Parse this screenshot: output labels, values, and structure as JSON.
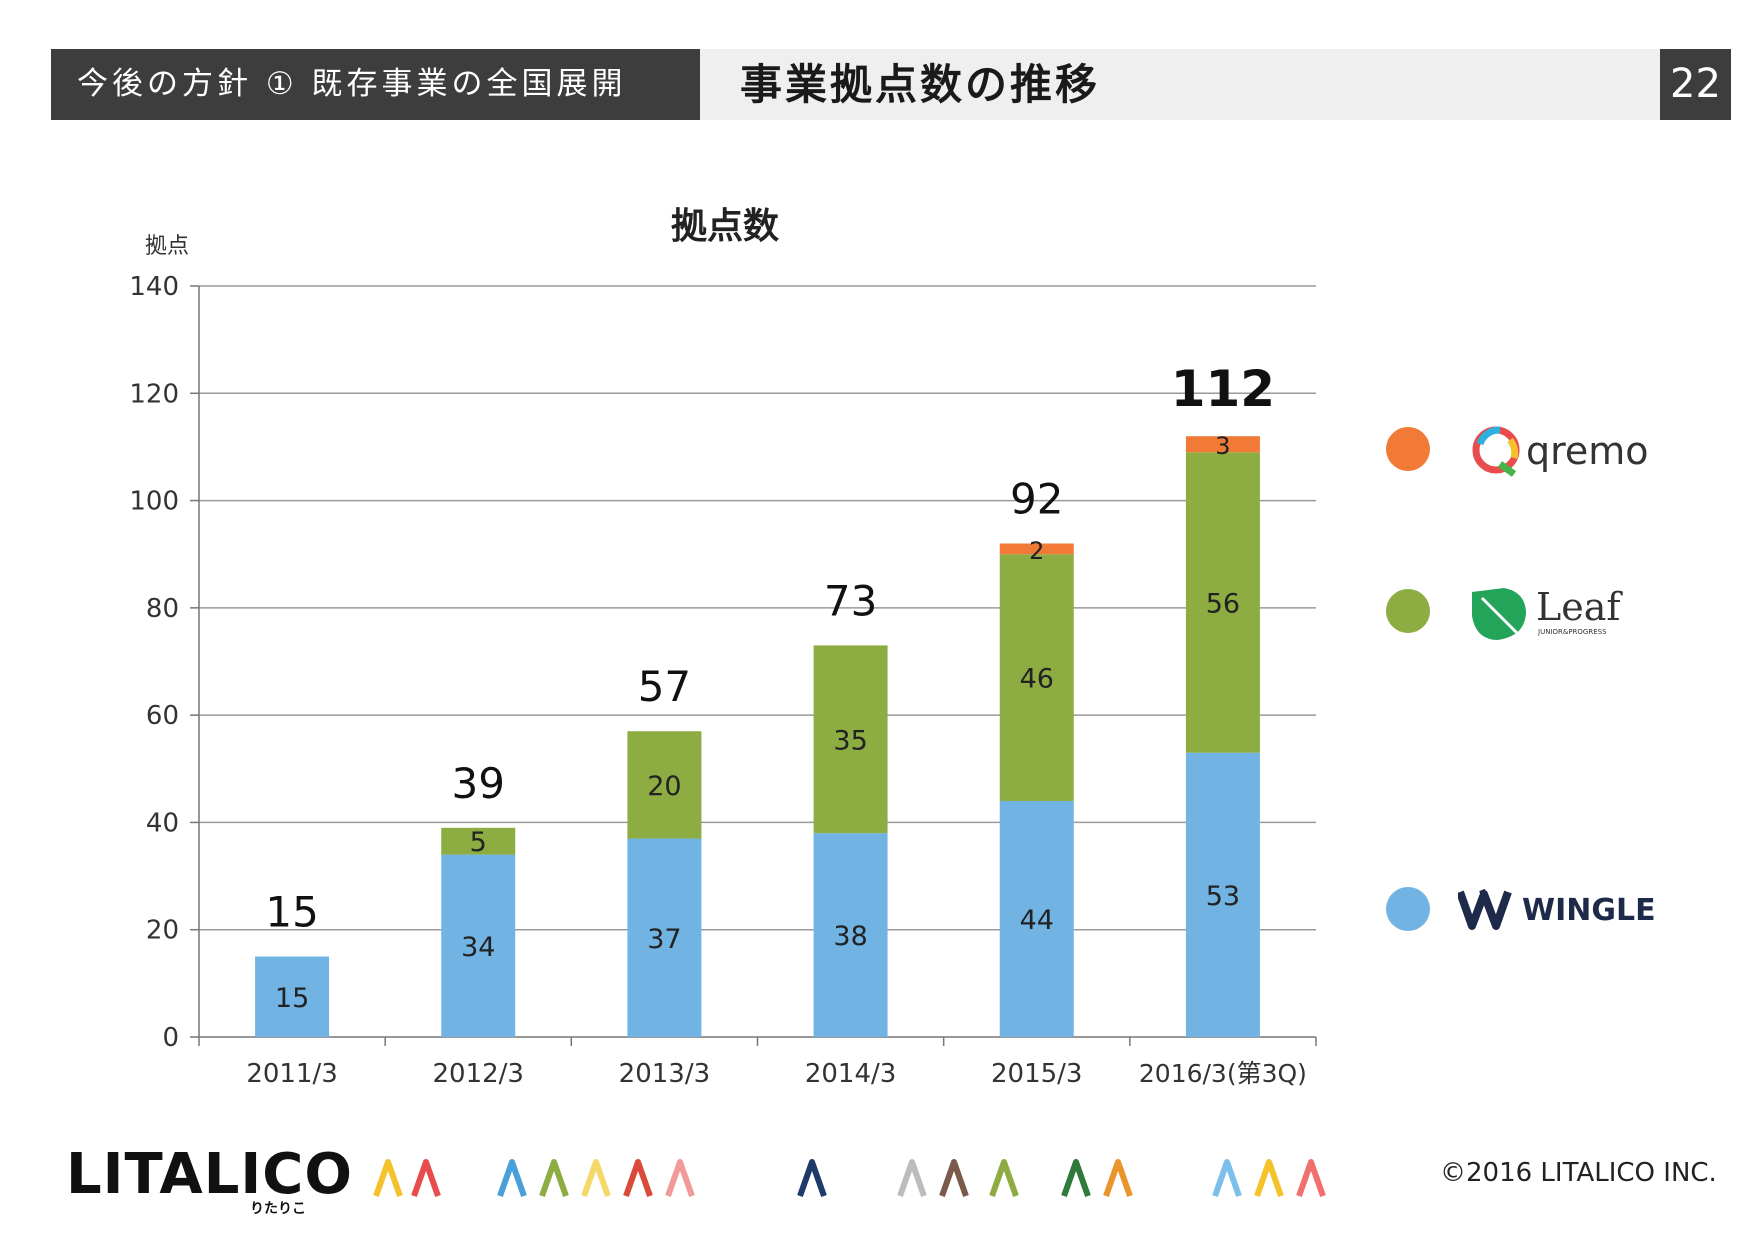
{
  "header": {
    "section": "今後の方針 ① 既存事業の全国展開",
    "title": "事業拠点数の推移",
    "page_number": "22"
  },
  "chart_data": {
    "type": "bar",
    "stacked": true,
    "title": "拠点数",
    "ylabel": "拠点",
    "xlabel": "",
    "ylim": [
      0,
      140
    ],
    "yticks": [
      0,
      20,
      40,
      60,
      80,
      100,
      120,
      140
    ],
    "grid": true,
    "legend_position": "right",
    "categories": [
      "2011/3",
      "2012/3",
      "2013/3",
      "2014/3",
      "2015/3",
      "2016/3(第3Q)"
    ],
    "series": [
      {
        "name": "WINGLE",
        "color": "#71b4e3",
        "values": [
          15,
          34,
          37,
          38,
          44,
          53
        ]
      },
      {
        "name": "Leaf",
        "color": "#8dac41",
        "values": [
          0,
          5,
          20,
          35,
          46,
          56
        ]
      },
      {
        "name": "qremo",
        "color": "#f07a36",
        "values": [
          0,
          0,
          0,
          0,
          2,
          3
        ]
      }
    ],
    "totals": [
      15,
      39,
      57,
      73,
      92,
      112
    ]
  },
  "legend": {
    "qremo": {
      "label": "qremo",
      "color": "#f07a36"
    },
    "leaf": {
      "label": "Leaf",
      "sub": "JUNIOR&PROGRESS",
      "color": "#8dac41"
    },
    "wingle": {
      "label": "WINGLE",
      "color": "#71b4e3"
    }
  },
  "footer": {
    "logo": "LITALICO",
    "logo_sub": "りたりこ",
    "copyright": "©2016 LITALICO INC."
  }
}
